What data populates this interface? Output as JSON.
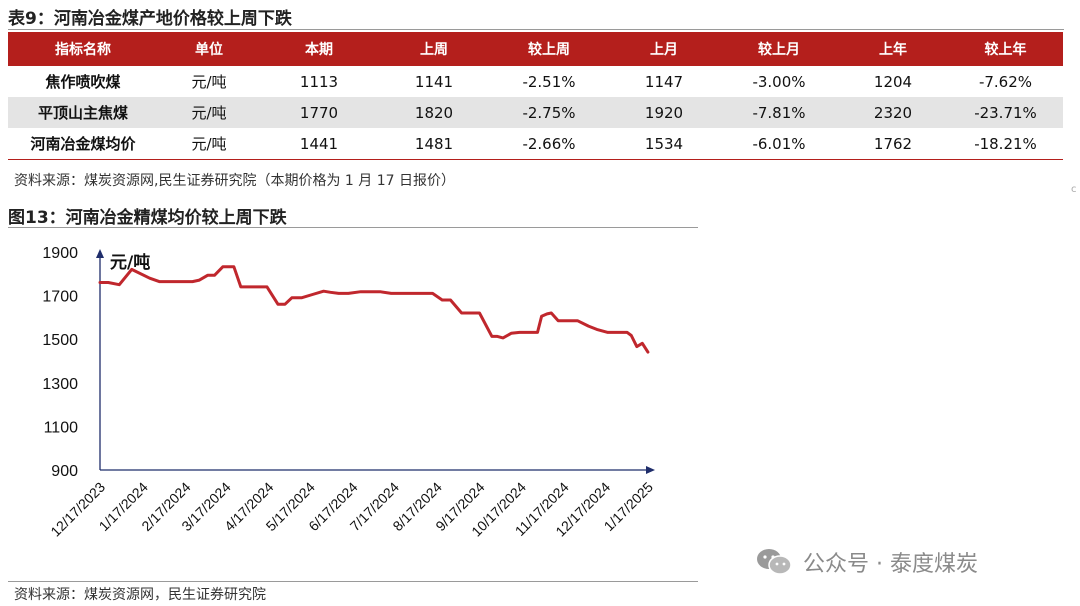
{
  "table_title": "表9：河南冶金煤产地价格较上周下跌",
  "table": {
    "headers": [
      "指标名称",
      "单位",
      "本期",
      "上周",
      "较上周",
      "上月",
      "较上月",
      "上年",
      "较上年"
    ],
    "rows": [
      [
        "焦作喷吹煤",
        "元/吨",
        "1113",
        "1141",
        "-2.51%",
        "1147",
        "-3.00%",
        "1204",
        "-7.62%"
      ],
      [
        "平顶山主焦煤",
        "元/吨",
        "1770",
        "1820",
        "-2.75%",
        "1920",
        "-7.81%",
        "2320",
        "-23.71%"
      ],
      [
        "河南冶金煤均价",
        "元/吨",
        "1441",
        "1481",
        "-2.66%",
        "1534",
        "-6.01%",
        "1762",
        "-18.21%"
      ]
    ]
  },
  "table_source": "资料来源：煤炭资源网,民生证券研究院（本期价格为 1 月 17 日报价）",
  "figure_title": "图13：河南冶金精煤均价较上周下跌",
  "figure_source": "资料来源：煤炭资源网，民生证券研究院",
  "watermark": "公众号 · 泰度煤炭",
  "corner_mark": "c",
  "colors": {
    "header_red": "#b41f1c",
    "line_red": "#c0272d",
    "axis_navy": "#1f2d6b",
    "row_shade": "#e4e4e4"
  },
  "chart_data": {
    "type": "line",
    "unit_label": "元/吨",
    "ylim": [
      900,
      1900
    ],
    "yticks": [
      900,
      1100,
      1300,
      1500,
      1700,
      1900
    ],
    "xlim": [
      "2023-12-17",
      "2025-01-20"
    ],
    "xticks": [
      "12/17/2023",
      "1/17/2024",
      "2/17/2024",
      "3/17/2024",
      "4/17/2024",
      "5/17/2024",
      "6/17/2024",
      "7/17/2024",
      "8/17/2024",
      "9/17/2024",
      "10/17/2024",
      "11/17/2024",
      "12/17/2024",
      "1/17/2025"
    ],
    "grid": false,
    "series": [
      {
        "color": "#c0272d",
        "points": [
          [
            "2023-12-17",
            1760
          ],
          [
            "2023-12-23",
            1760
          ],
          [
            "2023-12-31",
            1750
          ],
          [
            "2024-01-09",
            1820
          ],
          [
            "2024-01-22",
            1780
          ],
          [
            "2024-01-29",
            1764
          ],
          [
            "2024-02-09",
            1764
          ],
          [
            "2024-02-22",
            1764
          ],
          [
            "2024-02-27",
            1771
          ],
          [
            "2024-03-04",
            1793
          ],
          [
            "2024-03-09",
            1793
          ],
          [
            "2024-03-15",
            1832
          ],
          [
            "2024-03-23",
            1832
          ],
          [
            "2024-03-28",
            1740
          ],
          [
            "2024-04-08",
            1740
          ],
          [
            "2024-04-16",
            1740
          ],
          [
            "2024-04-24",
            1660
          ],
          [
            "2024-04-29",
            1660
          ],
          [
            "2024-05-04",
            1690
          ],
          [
            "2024-05-11",
            1690
          ],
          [
            "2024-05-19",
            1705
          ],
          [
            "2024-05-27",
            1720
          ],
          [
            "2024-06-01",
            1715
          ],
          [
            "2024-06-07",
            1710
          ],
          [
            "2024-06-14",
            1710
          ],
          [
            "2024-06-23",
            1718
          ],
          [
            "2024-06-29",
            1718
          ],
          [
            "2024-07-07",
            1718
          ],
          [
            "2024-07-15",
            1710
          ],
          [
            "2024-07-23",
            1710
          ],
          [
            "2024-07-30",
            1710
          ],
          [
            "2024-08-07",
            1710
          ],
          [
            "2024-08-14",
            1710
          ],
          [
            "2024-08-21",
            1680
          ],
          [
            "2024-08-27",
            1680
          ],
          [
            "2024-09-04",
            1620
          ],
          [
            "2024-09-10",
            1620
          ],
          [
            "2024-09-17",
            1620
          ],
          [
            "2024-09-26",
            1513
          ],
          [
            "2024-09-30",
            1513
          ],
          [
            "2024-10-04",
            1506
          ],
          [
            "2024-10-10",
            1527
          ],
          [
            "2024-10-16",
            1531
          ],
          [
            "2024-10-23",
            1531
          ],
          [
            "2024-10-29",
            1531
          ],
          [
            "2024-11-01",
            1605
          ],
          [
            "2024-11-05",
            1616
          ],
          [
            "2024-11-08",
            1620
          ],
          [
            "2024-11-13",
            1585
          ],
          [
            "2024-11-20",
            1585
          ],
          [
            "2024-11-27",
            1585
          ],
          [
            "2024-12-05",
            1560
          ],
          [
            "2024-12-11",
            1545
          ],
          [
            "2024-12-19",
            1531
          ],
          [
            "2024-12-27",
            1531
          ],
          [
            "2025-01-02",
            1531
          ],
          [
            "2025-01-05",
            1517
          ],
          [
            "2025-01-09",
            1466
          ],
          [
            "2025-01-13",
            1481
          ],
          [
            "2025-01-17",
            1441
          ]
        ]
      }
    ]
  }
}
